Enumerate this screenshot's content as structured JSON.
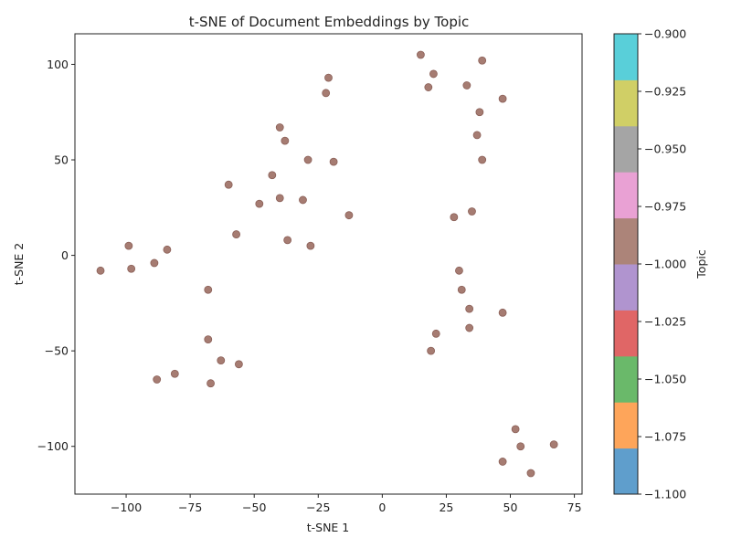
{
  "chart_data": {
    "type": "scatter",
    "title": "t-SNE of Document Embeddings by Topic",
    "xlabel": "t-SNE 1",
    "ylabel": "t-SNE 2",
    "xlim": [
      -120,
      78
    ],
    "ylim": [
      -125,
      116
    ],
    "xticks": [
      -100,
      -75,
      -50,
      -25,
      0,
      25,
      50,
      75
    ],
    "yticks": [
      -100,
      -50,
      0,
      50,
      100
    ],
    "xtick_labels": [
      "−100",
      "−75",
      "−50",
      "−25",
      "0",
      "25",
      "50",
      "75"
    ],
    "ytick_labels": [
      "−100",
      "−50",
      "0",
      "50",
      "100"
    ],
    "grid": false,
    "point_color": "#a67c72",
    "point_edge_color": "#8a5f57",
    "colorbar": {
      "label": "Topic",
      "range": [
        -1.1,
        -0.9
      ],
      "tick_labels": [
        "−0.900",
        "−0.925",
        "−0.950",
        "−0.975",
        "−1.000",
        "−1.025",
        "−1.050",
        "−1.075",
        "−1.100"
      ],
      "colors_bottom_to_top": [
        "#5f9ecc",
        "#fea55a",
        "#6ab96a",
        "#e06666",
        "#b094cf",
        "#ac8479",
        "#e9a1d4",
        "#a5a5a5",
        "#d0cf66",
        "#59cfd9"
      ]
    },
    "points": [
      [
        15,
        105
      ],
      [
        39,
        102
      ],
      [
        20,
        95
      ],
      [
        -21,
        93
      ],
      [
        33,
        89
      ],
      [
        18,
        88
      ],
      [
        -22,
        85
      ],
      [
        47,
        82
      ],
      [
        38,
        75
      ],
      [
        -40,
        67
      ],
      [
        37,
        63
      ],
      [
        -38,
        60
      ],
      [
        -29,
        50
      ],
      [
        39,
        50
      ],
      [
        -19,
        49
      ],
      [
        -43,
        42
      ],
      [
        -60,
        37
      ],
      [
        -40,
        30
      ],
      [
        -31,
        29
      ],
      [
        -48,
        27
      ],
      [
        35,
        23
      ],
      [
        -13,
        21
      ],
      [
        28,
        20
      ],
      [
        -57,
        11
      ],
      [
        -37,
        8
      ],
      [
        -28,
        5
      ],
      [
        -99,
        5
      ],
      [
        -84,
        3
      ],
      [
        -89,
        -4
      ],
      [
        -98,
        -7
      ],
      [
        -110,
        -8
      ],
      [
        30,
        -8
      ],
      [
        -68,
        -18
      ],
      [
        31,
        -18
      ],
      [
        34,
        -28
      ],
      [
        47,
        -30
      ],
      [
        34,
        -38
      ],
      [
        21,
        -41
      ],
      [
        -68,
        -44
      ],
      [
        19,
        -50
      ],
      [
        -63,
        -55
      ],
      [
        -56,
        -57
      ],
      [
        -81,
        -62
      ],
      [
        -88,
        -65
      ],
      [
        -67,
        -67
      ],
      [
        52,
        -91
      ],
      [
        67,
        -99
      ],
      [
        54,
        -100
      ],
      [
        47,
        -108
      ],
      [
        58,
        -114
      ]
    ]
  }
}
